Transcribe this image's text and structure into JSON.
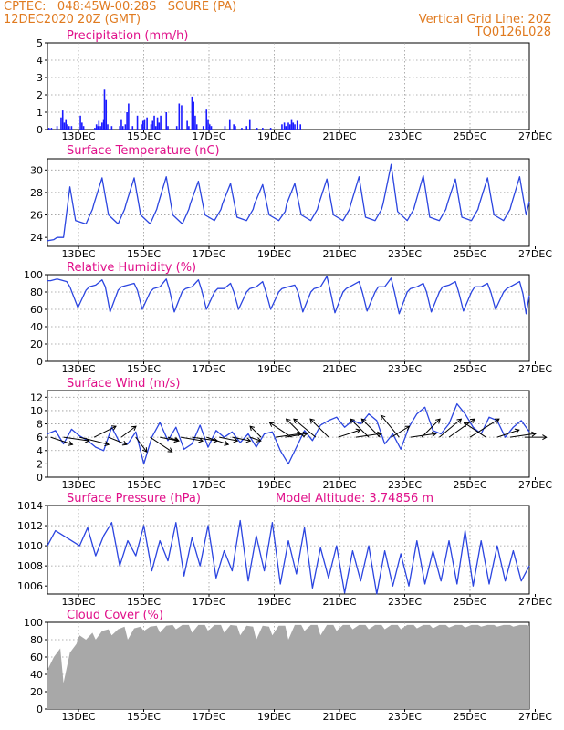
{
  "header": {
    "line1_left": "CPTEC:   048:45W-00:28S   SOURE (PA)",
    "line2_left": "12DEC2020 20Z (GMT)",
    "line1_right": "Vertical Grid Line: 20Z",
    "line2_right": "TQ0126L028"
  },
  "colors": {
    "header_text": "#e07a1f",
    "panel_title": "#e0108a",
    "series_line": "#2b45e0",
    "precip_bar": "#1a1aff",
    "cloud_fill": "#a8a8a8",
    "wind_arrow": "#000000",
    "grid": "#9a9a9a"
  },
  "x_tick_labels": [
    "13DEC",
    "15DEC",
    "17DEC",
    "19DEC",
    "21DEC",
    "23DEC",
    "25DEC",
    "27DEC"
  ],
  "chart_data": [
    {
      "id": "precip",
      "type": "bar",
      "title": "Precipitation  (mm/h)",
      "ylim": [
        0,
        5
      ],
      "yticks": [
        0,
        1,
        2,
        3,
        4,
        5
      ],
      "x_days": [
        0.1,
        0.25,
        0.6,
        0.85,
        0.95,
        1.05,
        1.15,
        1.25,
        1.35,
        1.5,
        2.05,
        2.15,
        2.25,
        2.95,
        3.05,
        3.15,
        3.2,
        3.3,
        3.4,
        3.5,
        3.55,
        3.65,
        3.75,
        4.0,
        4.5,
        4.6,
        4.7,
        4.85,
        4.95,
        5.05,
        5.3,
        5.6,
        5.85,
        5.95,
        6.05,
        6.2,
        6.45,
        6.55,
        6.65,
        6.75,
        6.85,
        6.95,
        7.05,
        7.4,
        7.5,
        8.05,
        8.2,
        8.35,
        8.7,
        8.8,
        9.0,
        9.1,
        9.2,
        9.3,
        9.7,
        9.9,
        10.0,
        10.1,
        10.2,
        11.05,
        11.35,
        11.6,
        11.7,
        12.1,
        12.4,
        12.6,
        13.05,
        13.4,
        13.9,
        14.6,
        14.75,
        14.85,
        15.0,
        15.1,
        15.2,
        15.3,
        15.4,
        15.55,
        15.75
      ],
      "values": [
        0.1,
        0.1,
        0.2,
        0.7,
        1.1,
        0.4,
        0.6,
        0.3,
        0.2,
        0.2,
        0.8,
        0.4,
        0.2,
        0.1,
        0.3,
        0.2,
        0.5,
        0.2,
        0.4,
        0.6,
        2.3,
        1.7,
        0.3,
        0.2,
        0.2,
        0.6,
        0.2,
        0.3,
        1.0,
        1.5,
        0.2,
        0.8,
        0.3,
        0.5,
        0.6,
        0.7,
        0.3,
        0.5,
        0.8,
        0.2,
        0.7,
        0.4,
        0.8,
        1.0,
        0.2,
        0.2,
        1.5,
        1.4,
        0.5,
        0.2,
        1.9,
        1.6,
        0.8,
        0.3,
        0.2,
        1.2,
        0.6,
        0.3,
        0.2,
        0.2,
        0.6,
        0.3,
        0.2,
        0.1,
        0.2,
        0.6,
        0.1,
        0.1,
        0.1,
        0.3,
        0.4,
        0.2,
        0.4,
        0.3,
        0.6,
        0.4,
        0.3,
        0.5,
        0.3
      ]
    },
    {
      "id": "temp",
      "type": "line",
      "title": "Surface Temperature (nC)",
      "ylim": [
        23.2,
        31
      ],
      "yticks": [
        24,
        26,
        28,
        30
      ],
      "x_days": [
        0.0,
        0.4,
        0.6,
        0.9,
        1.0,
        1.4,
        1.75,
        2.4,
        2.8,
        2.9,
        3.4,
        3.8,
        4.4,
        4.8,
        4.9,
        5.4,
        5.8,
        6.4,
        6.8,
        6.9,
        7.4,
        7.8,
        8.4,
        8.8,
        8.9,
        9.4,
        9.8,
        10.4,
        10.8,
        10.9,
        11.4,
        11.8,
        12.4,
        12.8,
        12.9,
        13.4,
        13.8,
        14.4,
        14.8,
        14.9,
        15.4,
        15.8,
        16.4,
        16.8,
        16.9,
        17.4,
        17.8,
        18.4,
        18.8,
        18.9,
        19.4,
        19.8,
        20.4,
        20.8,
        20.9,
        21.4,
        21.8,
        22.4,
        22.8,
        22.9,
        23.4,
        23.8,
        24.4,
        24.8,
        24.9,
        25.4,
        25.8,
        26.4,
        26.8,
        26.9,
        27.4,
        27.8,
        28.4,
        28.8,
        28.9,
        29.4,
        29.8,
        30.0
      ],
      "values": [
        23.7,
        23.8,
        24.0,
        24.0,
        24.0,
        28.5,
        25.5,
        25.2,
        26.5,
        27.0,
        29.3,
        26.0,
        25.2,
        26.5,
        27.0,
        29.3,
        26.0,
        25.2,
        26.5,
        27.0,
        29.4,
        26.0,
        25.2,
        26.5,
        27.0,
        29.0,
        26.0,
        25.5,
        26.5,
        27.0,
        28.8,
        25.8,
        25.5,
        26.5,
        27.0,
        28.7,
        26.0,
        25.5,
        26.3,
        27.0,
        28.8,
        26.0,
        25.5,
        26.5,
        27.0,
        29.2,
        26.0,
        25.5,
        26.5,
        27.0,
        29.4,
        25.8,
        25.5,
        26.5,
        27.0,
        30.5,
        26.3,
        25.5,
        26.5,
        27.0,
        29.5,
        25.8,
        25.5,
        26.5,
        27.0,
        29.2,
        25.8,
        25.5,
        26.5,
        27.0,
        29.3,
        26.0,
        25.5,
        26.5,
        27.0,
        29.4,
        26.0,
        27.2
      ]
    },
    {
      "id": "humidity",
      "type": "line",
      "title": "Relative Humidity (%)",
      "ylim": [
        0,
        100
      ],
      "yticks": [
        0,
        20,
        40,
        60,
        80,
        100
      ],
      "x_days": [
        0.0,
        0.2,
        0.6,
        1.2,
        1.4,
        1.9,
        2.4,
        2.6,
        3.0,
        3.4,
        3.6,
        3.9,
        4.4,
        4.6,
        5.0,
        5.4,
        5.6,
        5.9,
        6.4,
        6.6,
        7.0,
        7.4,
        7.6,
        7.9,
        8.4,
        8.6,
        9.0,
        9.4,
        9.6,
        9.9,
        10.4,
        10.6,
        11.0,
        11.4,
        11.6,
        11.9,
        12.4,
        12.6,
        13.0,
        13.4,
        13.6,
        13.9,
        14.4,
        14.6,
        15.0,
        15.4,
        15.6,
        15.9,
        16.4,
        16.6,
        17.0,
        17.4,
        17.6,
        17.9,
        18.4,
        18.6,
        19.0,
        19.4,
        19.6,
        19.9,
        20.4,
        20.6,
        21.0,
        21.4,
        21.6,
        21.9,
        22.4,
        22.6,
        23.0,
        23.4,
        23.6,
        23.9,
        24.4,
        24.6,
        25.0,
        25.4,
        25.6,
        25.9,
        26.4,
        26.6,
        27.0,
        27.4,
        27.6,
        27.9,
        28.4,
        28.6,
        29.0,
        29.4,
        29.6,
        29.8,
        30.0
      ],
      "values": [
        93,
        93,
        95,
        92,
        86,
        62,
        82,
        86,
        88,
        94,
        86,
        57,
        82,
        86,
        88,
        90,
        82,
        60,
        80,
        84,
        86,
        95,
        82,
        57,
        81,
        84,
        86,
        94,
        82,
        60,
        80,
        84,
        84,
        90,
        80,
        60,
        80,
        84,
        86,
        92,
        80,
        60,
        80,
        84,
        86,
        88,
        80,
        57,
        80,
        84,
        86,
        98,
        82,
        56,
        80,
        84,
        88,
        92,
        80,
        58,
        80,
        86,
        86,
        96,
        80,
        55,
        80,
        84,
        86,
        90,
        80,
        57,
        80,
        86,
        88,
        92,
        80,
        58,
        80,
        86,
        86,
        90,
        80,
        60,
        80,
        84,
        88,
        92,
        78,
        55,
        76
      ]
    },
    {
      "id": "wind",
      "type": "line",
      "title": "Surface Wind (m/s)",
      "ylim": [
        0,
        13
      ],
      "yticks": [
        0,
        2,
        4,
        6,
        8,
        10,
        12
      ],
      "x_days": [
        0.0,
        0.5,
        1.0,
        1.5,
        2.0,
        2.5,
        3.0,
        3.5,
        4.0,
        4.5,
        5.0,
        5.5,
        6.0,
        6.5,
        7.0,
        7.5,
        8.0,
        8.5,
        9.0,
        9.5,
        10.0,
        10.5,
        11.0,
        11.5,
        12.0,
        12.5,
        13.0,
        13.5,
        14.0,
        14.5,
        15.0,
        15.5,
        16.0,
        16.5,
        17.0,
        17.5,
        18.0,
        18.5,
        19.0,
        19.5,
        20.0,
        20.5,
        21.0,
        21.5,
        22.0,
        22.5,
        23.0,
        23.5,
        24.0,
        24.5,
        25.0,
        25.5,
        26.0,
        26.5,
        27.0,
        27.5,
        28.0,
        28.5,
        29.0,
        29.5,
        30.0
      ],
      "values": [
        6.5,
        7.0,
        5.0,
        7.2,
        6.2,
        5.5,
        4.5,
        4.0,
        7.5,
        5.2,
        5.0,
        6.8,
        2.0,
        6.0,
        8.2,
        5.5,
        7.5,
        4.2,
        5.0,
        7.8,
        4.5,
        7.0,
        6.0,
        6.8,
        5.2,
        6.5,
        4.5,
        6.5,
        6.8,
        4.0,
        2.0,
        4.5,
        7.0,
        5.5,
        7.8,
        8.5,
        9.0,
        7.5,
        8.5,
        8.0,
        9.5,
        8.5,
        5.0,
        6.5,
        4.2,
        7.5,
        9.5,
        10.5,
        7.0,
        6.5,
        8.0,
        11.0,
        9.5,
        7.5,
        6.5,
        9.0,
        8.5,
        6.0,
        7.5,
        8.5,
        6.8
      ],
      "vector_x_days": [
        0.2,
        1.0,
        2.0,
        2.9,
        3.8,
        4.6,
        5.5,
        6.4,
        7.0,
        7.5,
        8.3,
        9.0,
        9.9,
        10.7,
        11.5,
        12.6,
        13.3,
        14.2,
        14.8,
        15.2,
        16.0,
        16.7,
        17.5,
        18.1,
        19.2,
        20.0,
        20.7,
        21.4,
        21.9,
        22.6,
        23.3,
        24.4,
        25.0,
        26.3,
        27.3,
        28.0,
        28.8,
        29.7
      ],
      "vector_u": [
        6,
        7,
        8,
        6,
        5,
        4,
        3,
        6,
        5,
        3,
        6,
        7,
        6,
        5,
        5,
        3,
        -3,
        7,
        6,
        -6,
        -5,
        -6,
        -5,
        6,
        7,
        -5,
        -5,
        5,
        -5,
        7,
        5,
        6,
        7,
        8,
        -6,
        6,
        7,
        6
      ],
      "vector_v": [
        -2,
        -1,
        -2,
        3,
        -2,
        3,
        -4,
        -4,
        -1,
        -1,
        -1,
        -1,
        -2,
        -1,
        -1,
        -1,
        3,
        1,
        1,
        4,
        5,
        5,
        5,
        2,
        1,
        5,
        5,
        3,
        6,
        1,
        5,
        5,
        5,
        5,
        4,
        2,
        1,
        0
      ]
    },
    {
      "id": "pressure",
      "type": "line",
      "title": "Surface Pressure (hPa)",
      "annotation": "Model Altitude: 3.74856 m",
      "ylim": [
        1005.2,
        1014
      ],
      "yticks": [
        1006,
        1008,
        1010,
        1012,
        1014
      ],
      "x_days": [
        0.0,
        0.5,
        1.0,
        1.5,
        2.0,
        2.5,
        3.0,
        3.5,
        4.0,
        4.5,
        5.0,
        5.5,
        6.0,
        6.5,
        7.0,
        7.5,
        8.0,
        8.5,
        9.0,
        9.5,
        10.0,
        10.5,
        11.0,
        11.5,
        12.0,
        12.5,
        13.0,
        13.5,
        14.0,
        14.5,
        15.0,
        15.5,
        16.0,
        16.5,
        17.0,
        17.5,
        18.0,
        18.5,
        19.0,
        19.5,
        20.0,
        20.5,
        21.0,
        21.5,
        22.0,
        22.5,
        23.0,
        23.5,
        24.0,
        24.5,
        25.0,
        25.5,
        26.0,
        26.5,
        27.0,
        27.5,
        28.0,
        28.5,
        29.0,
        29.5,
        30.0
      ],
      "values": [
        1010,
        1011.5,
        1011,
        1010.5,
        1010,
        1011.8,
        1009,
        1011,
        1012.3,
        1008,
        1010.5,
        1009,
        1012,
        1007.5,
        1010.5,
        1008.5,
        1012.3,
        1007,
        1010.8,
        1008,
        1012,
        1006.8,
        1009.5,
        1007.5,
        1012.5,
        1006.5,
        1011,
        1007.5,
        1012.3,
        1006.2,
        1010.5,
        1007.2,
        1011.8,
        1005.8,
        1009.8,
        1006.8,
        1010,
        1005.3,
        1009.5,
        1006.5,
        1010,
        1005.2,
        1009.5,
        1006,
        1009.2,
        1006,
        1010.5,
        1006.2,
        1009.5,
        1006.5,
        1010.5,
        1006.2,
        1011.5,
        1006,
        1010.5,
        1006.2,
        1010,
        1006.5,
        1009.5,
        1006.5,
        1008
      ]
    },
    {
      "id": "cloud",
      "type": "area",
      "title": "Cloud Cover (%)",
      "ylim": [
        0,
        100
      ],
      "yticks": [
        0,
        20,
        40,
        60,
        80,
        100
      ],
      "x_days": [
        0.0,
        0.4,
        0.8,
        1.0,
        1.4,
        1.8,
        2.0,
        2.4,
        2.8,
        3.0,
        3.4,
        3.8,
        4.0,
        4.4,
        4.8,
        5.0,
        5.4,
        5.8,
        6.0,
        6.4,
        6.8,
        7.0,
        7.4,
        7.8,
        8.0,
        8.4,
        8.8,
        9.0,
        9.4,
        9.8,
        10.0,
        10.4,
        10.8,
        11.0,
        11.4,
        11.8,
        12.0,
        12.4,
        12.8,
        13.0,
        13.4,
        13.8,
        14.0,
        14.4,
        14.8,
        15.0,
        15.4,
        15.8,
        16.0,
        16.4,
        16.8,
        17.0,
        17.4,
        17.8,
        18.0,
        18.4,
        18.8,
        19.0,
        19.4,
        19.8,
        20.0,
        20.4,
        20.8,
        21.0,
        21.4,
        21.8,
        22.0,
        22.4,
        22.8,
        23.0,
        23.4,
        23.8,
        24.0,
        24.4,
        24.8,
        25.0,
        25.4,
        25.8,
        26.0,
        26.4,
        26.8,
        27.0,
        27.4,
        27.8,
        28.0,
        28.4,
        28.8,
        29.0,
        29.4,
        29.8,
        30.0
      ],
      "values": [
        45,
        60,
        70,
        30,
        65,
        75,
        85,
        80,
        88,
        80,
        90,
        92,
        85,
        92,
        95,
        80,
        93,
        95,
        90,
        95,
        96,
        88,
        96,
        97,
        92,
        97,
        97,
        88,
        97,
        97,
        90,
        97,
        97,
        88,
        97,
        96,
        85,
        96,
        95,
        80,
        96,
        95,
        85,
        96,
        96,
        80,
        97,
        97,
        90,
        97,
        97,
        85,
        97,
        97,
        90,
        97,
        97,
        92,
        97,
        97,
        92,
        97,
        97,
        92,
        97,
        97,
        92,
        97,
        97,
        93,
        97,
        97,
        93,
        97,
        97,
        94,
        97,
        97,
        94,
        97,
        97,
        95,
        97,
        97,
        95,
        97,
        97,
        95,
        97,
        97,
        96
      ]
    }
  ]
}
